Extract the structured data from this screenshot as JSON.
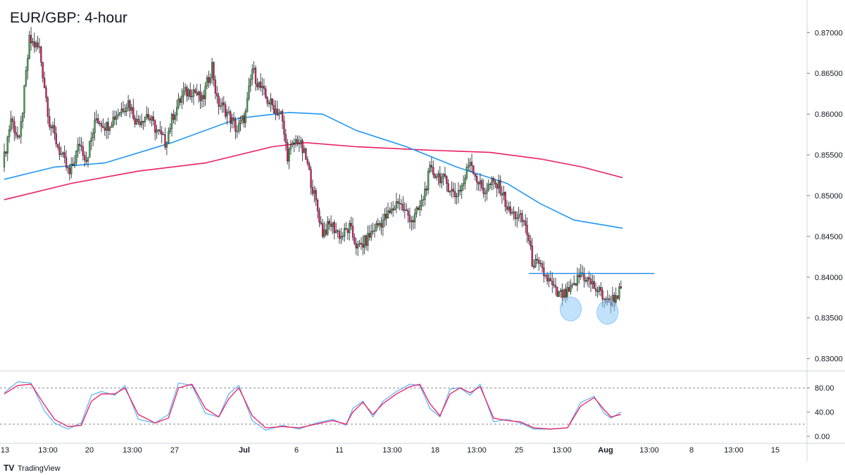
{
  "chart_data": {
    "type": "candlestick",
    "title": "EUR/GBP: 4-hour",
    "price_axis": {
      "range": [
        0.8285,
        0.874
      ],
      "ticks": [
        "0.87000",
        "0.86500",
        "0.86000",
        "0.85500",
        "0.85000",
        "0.84500",
        "0.84000",
        "0.83500",
        "0.83000"
      ]
    },
    "time_axis": {
      "labels": [
        "13",
        "13:00",
        "20",
        "13:00",
        "27",
        "Jul",
        "6",
        "11",
        "13:00",
        "18",
        "13:00",
        "25",
        "13:00",
        "Aug",
        "13:00",
        "8",
        "13:00",
        "15"
      ],
      "bold": [
        "Jul",
        "Aug"
      ]
    },
    "colors": {
      "bull": "#4caf50",
      "bear": "#e91e63",
      "ma_fast": "#2196f3",
      "ma_slow": "#e91e63",
      "stoch_k": "#64b5f6",
      "stoch_d": "#e91e63",
      "resistance": "#1e88e5",
      "highlight": "#90caf9"
    },
    "price_path": [
      [
        0,
        0.8535
      ],
      [
        5,
        0.8595
      ],
      [
        10,
        0.8565
      ],
      [
        16,
        0.869
      ],
      [
        22,
        0.868
      ],
      [
        28,
        0.859
      ],
      [
        34,
        0.8555
      ],
      [
        40,
        0.8525
      ],
      [
        46,
        0.8565
      ],
      [
        50,
        0.8545
      ],
      [
        56,
        0.8595
      ],
      [
        62,
        0.8585
      ],
      [
        68,
        0.86
      ],
      [
        75,
        0.8615
      ],
      [
        80,
        0.859
      ],
      [
        86,
        0.86
      ],
      [
        92,
        0.858
      ],
      [
        97,
        0.8565
      ],
      [
        102,
        0.86
      ],
      [
        108,
        0.8625
      ],
      [
        114,
        0.863
      ],
      [
        119,
        0.8615
      ],
      [
        125,
        0.866
      ],
      [
        128,
        0.8615
      ],
      [
        133,
        0.8605
      ],
      [
        140,
        0.858
      ],
      [
        145,
        0.86
      ],
      [
        149,
        0.8655
      ],
      [
        152,
        0.864
      ],
      [
        157,
        0.862
      ],
      [
        161,
        0.861
      ],
      [
        166,
        0.86
      ],
      [
        170,
        0.855
      ],
      [
        176,
        0.857
      ],
      [
        181,
        0.8545
      ],
      [
        186,
        0.85
      ],
      [
        191,
        0.8455
      ],
      [
        196,
        0.8465
      ],
      [
        202,
        0.845
      ],
      [
        207,
        0.846
      ],
      [
        212,
        0.8435
      ],
      [
        217,
        0.8445
      ],
      [
        222,
        0.846
      ],
      [
        227,
        0.847
      ],
      [
        232,
        0.848
      ],
      [
        236,
        0.8495
      ],
      [
        240,
        0.848
      ],
      [
        245,
        0.847
      ],
      [
        250,
        0.849
      ],
      [
        255,
        0.853
      ],
      [
        260,
        0.8525
      ],
      [
        265,
        0.8515
      ],
      [
        270,
        0.85
      ],
      [
        275,
        0.8515
      ],
      [
        279,
        0.8545
      ],
      [
        283,
        0.852
      ],
      [
        287,
        0.8505
      ],
      [
        292,
        0.8515
      ],
      [
        297,
        0.851
      ],
      [
        302,
        0.848
      ],
      [
        307,
        0.8475
      ],
      [
        312,
        0.8465
      ],
      [
        316,
        0.842
      ],
      [
        321,
        0.841
      ],
      [
        326,
        0.8395
      ],
      [
        331,
        0.8378
      ],
      [
        336,
        0.8378
      ],
      [
        340,
        0.8385
      ],
      [
        345,
        0.8405
      ],
      [
        350,
        0.8395
      ],
      [
        355,
        0.8383
      ],
      [
        358,
        0.8378
      ],
      [
        361,
        0.8368
      ],
      [
        365,
        0.8375
      ],
      [
        368,
        0.8382
      ]
    ],
    "ma_fast": [
      [
        0,
        0.852
      ],
      [
        30,
        0.8535
      ],
      [
        60,
        0.854
      ],
      [
        100,
        0.8565
      ],
      [
        140,
        0.8595
      ],
      [
        170,
        0.8602
      ],
      [
        190,
        0.86
      ],
      [
        210,
        0.858
      ],
      [
        240,
        0.856
      ],
      [
        270,
        0.8535
      ],
      [
        300,
        0.8515
      ],
      [
        320,
        0.849
      ],
      [
        340,
        0.847
      ],
      [
        369,
        0.846
      ]
    ],
    "ma_slow": [
      [
        0,
        0.8495
      ],
      [
        40,
        0.8515
      ],
      [
        80,
        0.853
      ],
      [
        120,
        0.854
      ],
      [
        160,
        0.856
      ],
      [
        180,
        0.8565
      ],
      [
        210,
        0.856
      ],
      [
        250,
        0.8556
      ],
      [
        290,
        0.8553
      ],
      [
        320,
        0.8545
      ],
      [
        345,
        0.8535
      ],
      [
        369,
        0.8522
      ]
    ],
    "resistance_level": 0.84045,
    "resistance_range_bars": [
      313,
      388
    ],
    "highlight_bars": [
      [
        338,
        0.8361
      ],
      [
        360,
        0.8357
      ]
    ],
    "stochastic": {
      "levels": [
        "80.00",
        "40.00",
        "0.00"
      ],
      "k": [
        [
          0,
          72
        ],
        [
          8,
          90
        ],
        [
          16,
          88
        ],
        [
          24,
          42
        ],
        [
          30,
          22
        ],
        [
          38,
          12
        ],
        [
          46,
          22
        ],
        [
          52,
          68
        ],
        [
          58,
          74
        ],
        [
          66,
          68
        ],
        [
          72,
          84
        ],
        [
          80,
          28
        ],
        [
          90,
          22
        ],
        [
          98,
          36
        ],
        [
          104,
          88
        ],
        [
          112,
          84
        ],
        [
          120,
          38
        ],
        [
          128,
          32
        ],
        [
          134,
          70
        ],
        [
          140,
          84
        ],
        [
          148,
          26
        ],
        [
          156,
          10
        ],
        [
          166,
          18
        ],
        [
          176,
          12
        ],
        [
          186,
          22
        ],
        [
          196,
          28
        ],
        [
          204,
          18
        ],
        [
          208,
          46
        ],
        [
          214,
          58
        ],
        [
          220,
          32
        ],
        [
          226,
          58
        ],
        [
          234,
          74
        ],
        [
          242,
          86
        ],
        [
          248,
          84
        ],
        [
          254,
          46
        ],
        [
          260,
          32
        ],
        [
          266,
          78
        ],
        [
          272,
          80
        ],
        [
          278,
          68
        ],
        [
          284,
          86
        ],
        [
          292,
          24
        ],
        [
          300,
          28
        ],
        [
          308,
          22
        ],
        [
          316,
          12
        ],
        [
          326,
          12
        ],
        [
          336,
          14
        ],
        [
          344,
          56
        ],
        [
          352,
          66
        ],
        [
          358,
          38
        ],
        [
          362,
          30
        ],
        [
          368,
          40
        ]
      ],
      "d": [
        [
          0,
          70
        ],
        [
          8,
          84
        ],
        [
          16,
          86
        ],
        [
          24,
          52
        ],
        [
          30,
          28
        ],
        [
          38,
          16
        ],
        [
          46,
          18
        ],
        [
          52,
          58
        ],
        [
          58,
          70
        ],
        [
          66,
          70
        ],
        [
          72,
          80
        ],
        [
          80,
          36
        ],
        [
          90,
          22
        ],
        [
          98,
          30
        ],
        [
          104,
          80
        ],
        [
          112,
          86
        ],
        [
          120,
          46
        ],
        [
          128,
          32
        ],
        [
          134,
          62
        ],
        [
          140,
          80
        ],
        [
          148,
          34
        ],
        [
          156,
          14
        ],
        [
          166,
          16
        ],
        [
          176,
          14
        ],
        [
          186,
          20
        ],
        [
          196,
          26
        ],
        [
          204,
          20
        ],
        [
          208,
          40
        ],
        [
          214,
          56
        ],
        [
          220,
          36
        ],
        [
          226,
          54
        ],
        [
          234,
          70
        ],
        [
          242,
          82
        ],
        [
          248,
          86
        ],
        [
          254,
          54
        ],
        [
          260,
          34
        ],
        [
          266,
          70
        ],
        [
          272,
          80
        ],
        [
          278,
          72
        ],
        [
          284,
          82
        ],
        [
          292,
          30
        ],
        [
          300,
          26
        ],
        [
          308,
          24
        ],
        [
          316,
          14
        ],
        [
          326,
          12
        ],
        [
          336,
          14
        ],
        [
          344,
          50
        ],
        [
          352,
          64
        ],
        [
          358,
          44
        ],
        [
          362,
          32
        ],
        [
          368,
          36
        ]
      ]
    }
  },
  "branding": {
    "text": "TradingView"
  }
}
